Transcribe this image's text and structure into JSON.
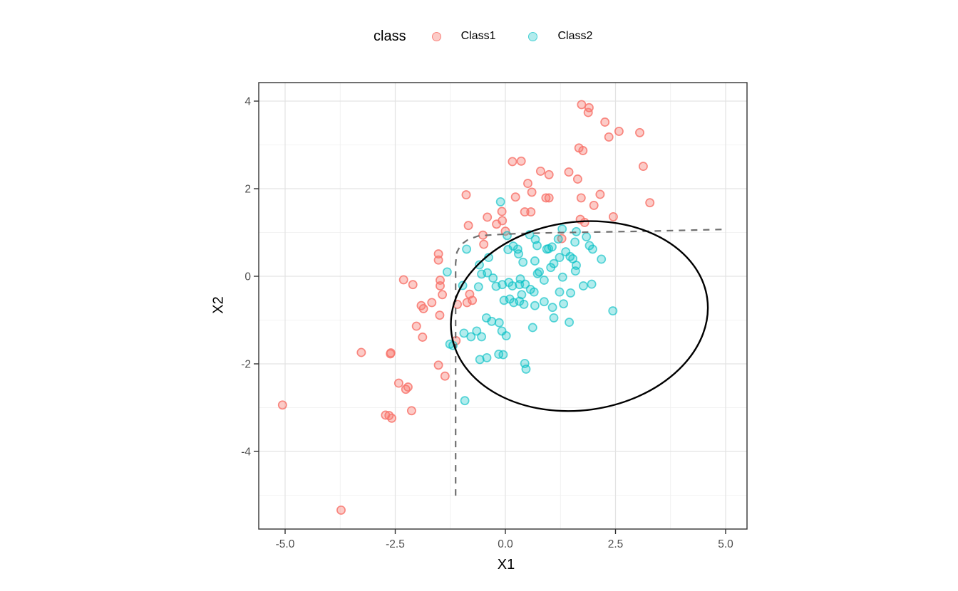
{
  "figure": {
    "background": "#ffffff",
    "legend": {
      "title": "class",
      "items": [
        {
          "label": "Class1",
          "color": "#F8766D"
        },
        {
          "label": "Class2",
          "color": "#00BFC4"
        }
      ]
    }
  },
  "chart_data": {
    "type": "scatter",
    "title": "",
    "xlabel": "X1",
    "ylabel": "X2",
    "xlim": [
      -5.6,
      5.49
    ],
    "ylim": [
      -5.78,
      4.42
    ],
    "grid": "on",
    "legend_position": "top",
    "x_ticks": [
      -5,
      -2.5,
      0,
      2.5,
      5
    ],
    "x_tick_labels": [
      "-5.0",
      "-2.5",
      "0.0",
      "2.5",
      "5.0"
    ],
    "x_minor_gridlines": [
      -3.75,
      -1.25,
      1.25,
      3.75
    ],
    "y_ticks": [
      -4,
      -2,
      0,
      2,
      4
    ],
    "y_tick_labels": [
      "-4",
      "-2",
      "0",
      "2",
      "4"
    ],
    "y_minor_gridlines": [
      -5,
      -3,
      -1,
      1,
      3
    ],
    "series": [
      {
        "name": "Class1",
        "color": "#F8766D",
        "points": [
          [
            1.73,
            3.92
          ],
          [
            1.9,
            3.85
          ],
          [
            1.88,
            3.74
          ],
          [
            2.26,
            3.52
          ],
          [
            2.58,
            3.31
          ],
          [
            3.05,
            3.28
          ],
          [
            2.35,
            3.18
          ],
          [
            1.67,
            2.93
          ],
          [
            1.76,
            2.87
          ],
          [
            0.16,
            2.62
          ],
          [
            0.36,
            2.63
          ],
          [
            3.13,
            2.51
          ],
          [
            0.8,
            2.4
          ],
          [
            0.99,
            2.32
          ],
          [
            1.44,
            2.38
          ],
          [
            1.64,
            2.22
          ],
          [
            0.51,
            2.12
          ],
          [
            0.6,
            1.92
          ],
          [
            0.23,
            1.81
          ],
          [
            -0.89,
            1.86
          ],
          [
            0.92,
            1.79
          ],
          [
            0.99,
            1.79
          ],
          [
            1.72,
            1.79
          ],
          [
            2.15,
            1.87
          ],
          [
            3.28,
            1.68
          ],
          [
            2.01,
            1.62
          ],
          [
            -0.41,
            1.35
          ],
          [
            -0.08,
            1.48
          ],
          [
            -0.07,
            1.27
          ],
          [
            -0.84,
            1.16
          ],
          [
            -0.2,
            1.19
          ],
          [
            0.44,
            1.47
          ],
          [
            0.58,
            1.47
          ],
          [
            1.7,
            1.3
          ],
          [
            1.8,
            1.23
          ],
          [
            2.45,
            1.36
          ],
          [
            -0.51,
            0.94
          ],
          [
            -0.49,
            0.73
          ],
          [
            1.28,
            0.86
          ],
          [
            0.0,
            1.03
          ],
          [
            -1.52,
            0.51
          ],
          [
            -1.52,
            0.37
          ],
          [
            -2.31,
            -0.08
          ],
          [
            -2.1,
            -0.19
          ],
          [
            -1.48,
            -0.09
          ],
          [
            -1.48,
            -0.22
          ],
          [
            -1.43,
            -0.42
          ],
          [
            -1.91,
            -0.67
          ],
          [
            -1.86,
            -0.74
          ],
          [
            -1.67,
            -0.6
          ],
          [
            -1.49,
            -0.89
          ],
          [
            -2.02,
            -1.14
          ],
          [
            -1.88,
            -1.39
          ],
          [
            -1.09,
            -0.64
          ],
          [
            -0.87,
            -0.6
          ],
          [
            -0.81,
            -0.41
          ],
          [
            -0.75,
            -0.55
          ],
          [
            -1.12,
            -1.47
          ],
          [
            -2.6,
            -1.75
          ],
          [
            -1.52,
            -2.03
          ],
          [
            -1.37,
            -2.28
          ],
          [
            -2.42,
            -2.44
          ],
          [
            -2.21,
            -2.53
          ],
          [
            -2.13,
            -3.07
          ],
          [
            -2.72,
            -3.17
          ],
          [
            -3.27,
            -1.74
          ],
          [
            -2.61,
            -1.77
          ],
          [
            -2.26,
            -2.58
          ],
          [
            -5.06,
            -2.94
          ],
          [
            -2.64,
            -3.18
          ],
          [
            -2.58,
            -3.24
          ],
          [
            -3.73,
            -5.34
          ]
        ]
      },
      {
        "name": "Class2",
        "color": "#00BFC4",
        "points": [
          [
            -0.11,
            1.7
          ],
          [
            1.29,
            1.08
          ],
          [
            1.61,
            1.02
          ],
          [
            0.55,
            0.95
          ],
          [
            0.68,
            0.84
          ],
          [
            0.72,
            0.7
          ],
          [
            0.94,
            0.62
          ],
          [
            1.2,
            0.85
          ],
          [
            0.98,
            0.63
          ],
          [
            1.06,
            0.67
          ],
          [
            1.37,
            0.56
          ],
          [
            1.58,
            0.78
          ],
          [
            1.84,
            0.9
          ],
          [
            1.91,
            0.7
          ],
          [
            1.98,
            0.62
          ],
          [
            0.18,
            0.69
          ],
          [
            0.06,
            0.61
          ],
          [
            0.3,
            0.51
          ],
          [
            0.04,
            0.93
          ],
          [
            1.47,
            0.45
          ],
          [
            -1.32,
            0.1
          ],
          [
            -0.97,
            -0.21
          ],
          [
            -0.88,
            0.62
          ],
          [
            -0.59,
            0.26
          ],
          [
            -0.54,
            0.05
          ],
          [
            -0.38,
            0.43
          ],
          [
            -0.61,
            -0.24
          ],
          [
            -0.41,
            0.08
          ],
          [
            -0.28,
            -0.04
          ],
          [
            -0.21,
            -0.23
          ],
          [
            -0.07,
            -0.19
          ],
          [
            0.28,
            0.62
          ],
          [
            0.4,
            0.32
          ],
          [
            0.67,
            0.35
          ],
          [
            0.77,
            0.1
          ],
          [
            0.73,
            0.06
          ],
          [
            0.88,
            -0.09
          ],
          [
            1.1,
            0.29
          ],
          [
            1.23,
            0.43
          ],
          [
            1.3,
            -0.02
          ],
          [
            1.03,
            0.2
          ],
          [
            0.34,
            -0.06
          ],
          [
            0.08,
            -0.14
          ],
          [
            0.16,
            -0.22
          ],
          [
            0.32,
            -0.19
          ],
          [
            0.45,
            -0.18
          ],
          [
            -0.03,
            -0.55
          ],
          [
            0.1,
            -0.52
          ],
          [
            0.19,
            -0.6
          ],
          [
            0.32,
            -0.57
          ],
          [
            0.42,
            -0.64
          ],
          [
            0.67,
            -0.67
          ],
          [
            0.88,
            -0.58
          ],
          [
            1.07,
            -0.71
          ],
          [
            1.32,
            -0.63
          ],
          [
            0.57,
            -0.3
          ],
          [
            0.65,
            -0.36
          ],
          [
            0.37,
            -0.42
          ],
          [
            1.23,
            -0.36
          ],
          [
            -0.43,
            -0.95
          ],
          [
            -0.31,
            -1.03
          ],
          [
            -0.14,
            -1.06
          ],
          [
            -0.08,
            -1.25
          ],
          [
            1.1,
            -0.95
          ],
          [
            1.45,
            -1.05
          ],
          [
            1.53,
            0.4
          ],
          [
            1.61,
            0.25
          ],
          [
            1.59,
            0.12
          ],
          [
            2.18,
            0.39
          ],
          [
            1.96,
            -0.18
          ],
          [
            1.77,
            -0.22
          ],
          [
            1.48,
            -0.38
          ],
          [
            2.44,
            -0.79
          ],
          [
            -1.26,
            -1.55
          ],
          [
            -1.19,
            -1.58
          ],
          [
            -0.94,
            -1.3
          ],
          [
            -0.78,
            -1.38
          ],
          [
            -0.65,
            -1.25
          ],
          [
            -0.54,
            -1.38
          ],
          [
            0.02,
            -1.36
          ],
          [
            0.62,
            -1.17
          ],
          [
            -0.58,
            -1.9
          ],
          [
            -0.42,
            -1.86
          ],
          [
            -0.15,
            -1.78
          ],
          [
            -0.05,
            -1.79
          ],
          [
            0.44,
            -1.99
          ],
          [
            0.47,
            -2.12
          ],
          [
            -0.92,
            -2.84
          ]
        ]
      }
    ],
    "annotations": {
      "ellipse": {
        "cx": 1.68,
        "cy": -0.91,
        "rx": 2.93,
        "ry": 2.15,
        "rotation_deg": -8,
        "color": "#000000"
      },
      "dashed_boundary": {
        "color": "#6f6f6f",
        "points": [
          [
            -1.13,
            -5.01
          ],
          [
            -1.13,
            -2.0
          ],
          [
            -1.13,
            0.3
          ],
          [
            -1.1,
            0.55
          ],
          [
            -1.01,
            0.72
          ],
          [
            -0.86,
            0.83
          ],
          [
            -0.62,
            0.92
          ],
          [
            -0.25,
            0.95
          ],
          [
            0.2,
            0.97
          ],
          [
            0.9,
            0.99
          ],
          [
            2.0,
            1.01
          ],
          [
            3.2,
            1.03
          ],
          [
            4.1,
            1.05
          ],
          [
            4.92,
            1.07
          ]
        ]
      }
    }
  }
}
